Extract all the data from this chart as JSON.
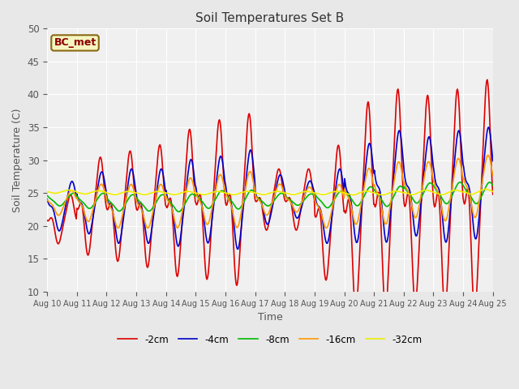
{
  "title": "Soil Temperatures Set B",
  "xlabel": "Time",
  "ylabel": "Soil Temperature (C)",
  "ylim": [
    10,
    50
  ],
  "annotation": "BC_met",
  "x_tick_labels": [
    "Aug 10",
    "Aug 11",
    "Aug 12",
    "Aug 13",
    "Aug 14",
    "Aug 15",
    "Aug 16",
    "Aug 17",
    "Aug 18",
    "Aug 19",
    "Aug 20",
    "Aug 21",
    "Aug 22",
    "Aug 23",
    "Aug 24",
    "Aug 25"
  ],
  "series": {
    "-2cm": {
      "color": "#dd0000",
      "linewidth": 1.2
    },
    "-4cm": {
      "color": "#0000cc",
      "linewidth": 1.2
    },
    "-8cm": {
      "color": "#00bb00",
      "linewidth": 1.2
    },
    "-16cm": {
      "color": "#ff9900",
      "linewidth": 1.2
    },
    "-32cm": {
      "color": "#eeee00",
      "linewidth": 1.2
    }
  },
  "background_color": "#e8e8e8",
  "plot_bg_color": "#f0f0f0",
  "grid_color": "#ffffff",
  "n_points_per_day": 48,
  "days": 15,
  "mean_2cm": [
    21,
    23,
    23,
    23,
    23.5,
    24,
    24,
    24,
    24,
    22,
    23,
    24,
    24,
    24,
    24.5,
    25
  ],
  "mean_4cm": [
    23,
    23.5,
    23,
    23,
    23.5,
    24,
    24,
    24,
    24,
    23,
    25,
    26,
    26,
    26,
    26.5,
    27
  ],
  "mean_8cm": [
    24,
    23.8,
    23.5,
    23.5,
    23.5,
    24,
    24,
    24,
    24,
    24,
    24.5,
    24.5,
    25,
    25,
    25,
    25.5
  ],
  "mean_16cm": [
    23.5,
    23.5,
    23,
    23,
    23.5,
    24,
    24,
    24,
    24,
    23,
    24.5,
    25,
    25.5,
    25.5,
    26,
    26.5
  ],
  "mean_32cm": [
    25.2,
    25.1,
    25.0,
    25.0,
    25.0,
    25.0,
    25.0,
    25.0,
    25.0,
    25.0,
    25.0,
    25.0,
    25.1,
    25.1,
    25.2,
    25.2
  ],
  "amplitude_2cm": [
    4,
    8,
    9,
    10,
    12,
    13,
    14,
    5,
    5,
    11,
    17,
    18,
    17,
    18,
    19,
    21
  ],
  "amplitude_4cm": [
    4,
    5,
    6,
    6,
    7,
    7,
    8,
    4,
    3,
    6,
    8,
    9,
    8,
    9,
    9,
    10
  ],
  "amplitude_8cm": [
    1.0,
    1.2,
    1.3,
    1.3,
    1.4,
    1.4,
    1.5,
    1.0,
    0.9,
    1.3,
    1.5,
    1.6,
    1.6,
    1.7,
    1.7,
    1.8
  ],
  "amplitude_16cm": [
    2.0,
    3.0,
    3.5,
    3.5,
    4.0,
    4.0,
    4.5,
    2.5,
    2.0,
    3.5,
    4.5,
    5.0,
    4.5,
    5.0,
    5.0,
    5.5
  ],
  "amplitude_32cm": [
    0.25,
    0.25,
    0.25,
    0.25,
    0.25,
    0.25,
    0.25,
    0.25,
    0.25,
    0.25,
    0.3,
    0.3,
    0.35,
    0.35,
    0.4,
    0.4
  ],
  "phase_peak_2cm": 0.58,
  "phase_peak_4cm": 0.62,
  "phase_peak_8cm": 0.65,
  "phase_peak_16cm": 0.6,
  "phase_peak_32cm": 0.5,
  "skew_2cm": 4.0,
  "skew_4cm": 2.5,
  "skew_8cm": 1.2,
  "skew_16cm": 2.0,
  "skew_32cm": 1.0
}
